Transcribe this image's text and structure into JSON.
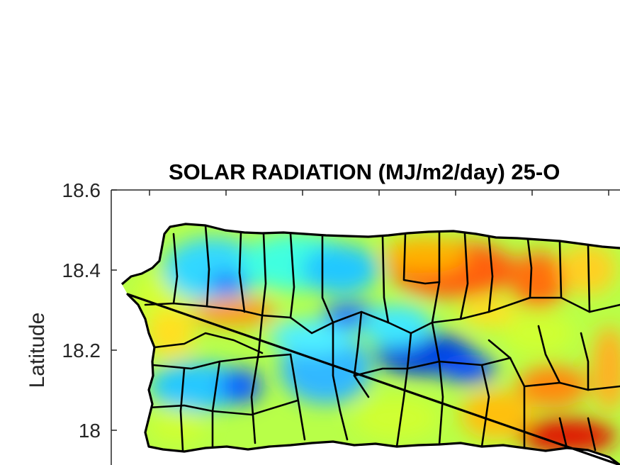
{
  "title": "SOLAR RADIATION (MJ/m2/day) 25-O",
  "ylabel": "Latitude",
  "yticks": [
    "18.6",
    "18.4",
    "18.2",
    "18"
  ],
  "colormap": [
    "#00007f",
    "#0040ff",
    "#00c0ff",
    "#40ffbf",
    "#bfff40",
    "#ffcf00",
    "#ff5000",
    "#bf0000"
  ],
  "chart_data": {
    "type": "heatmap",
    "title": "SOLAR RADIATION (MJ/m2/day) 25-O",
    "xlabel": "",
    "ylabel": "Latitude",
    "ylim": [
      17.95,
      18.6
    ],
    "yticks": [
      18.6,
      18.4,
      18.2,
      18.0
    ],
    "description_of_field": "gridded solar radiation over Puerto Rico with municipal boundaries; low values (blue) in central-west mountains, high values (orange-red) on northeast coast and southeast corner"
  }
}
